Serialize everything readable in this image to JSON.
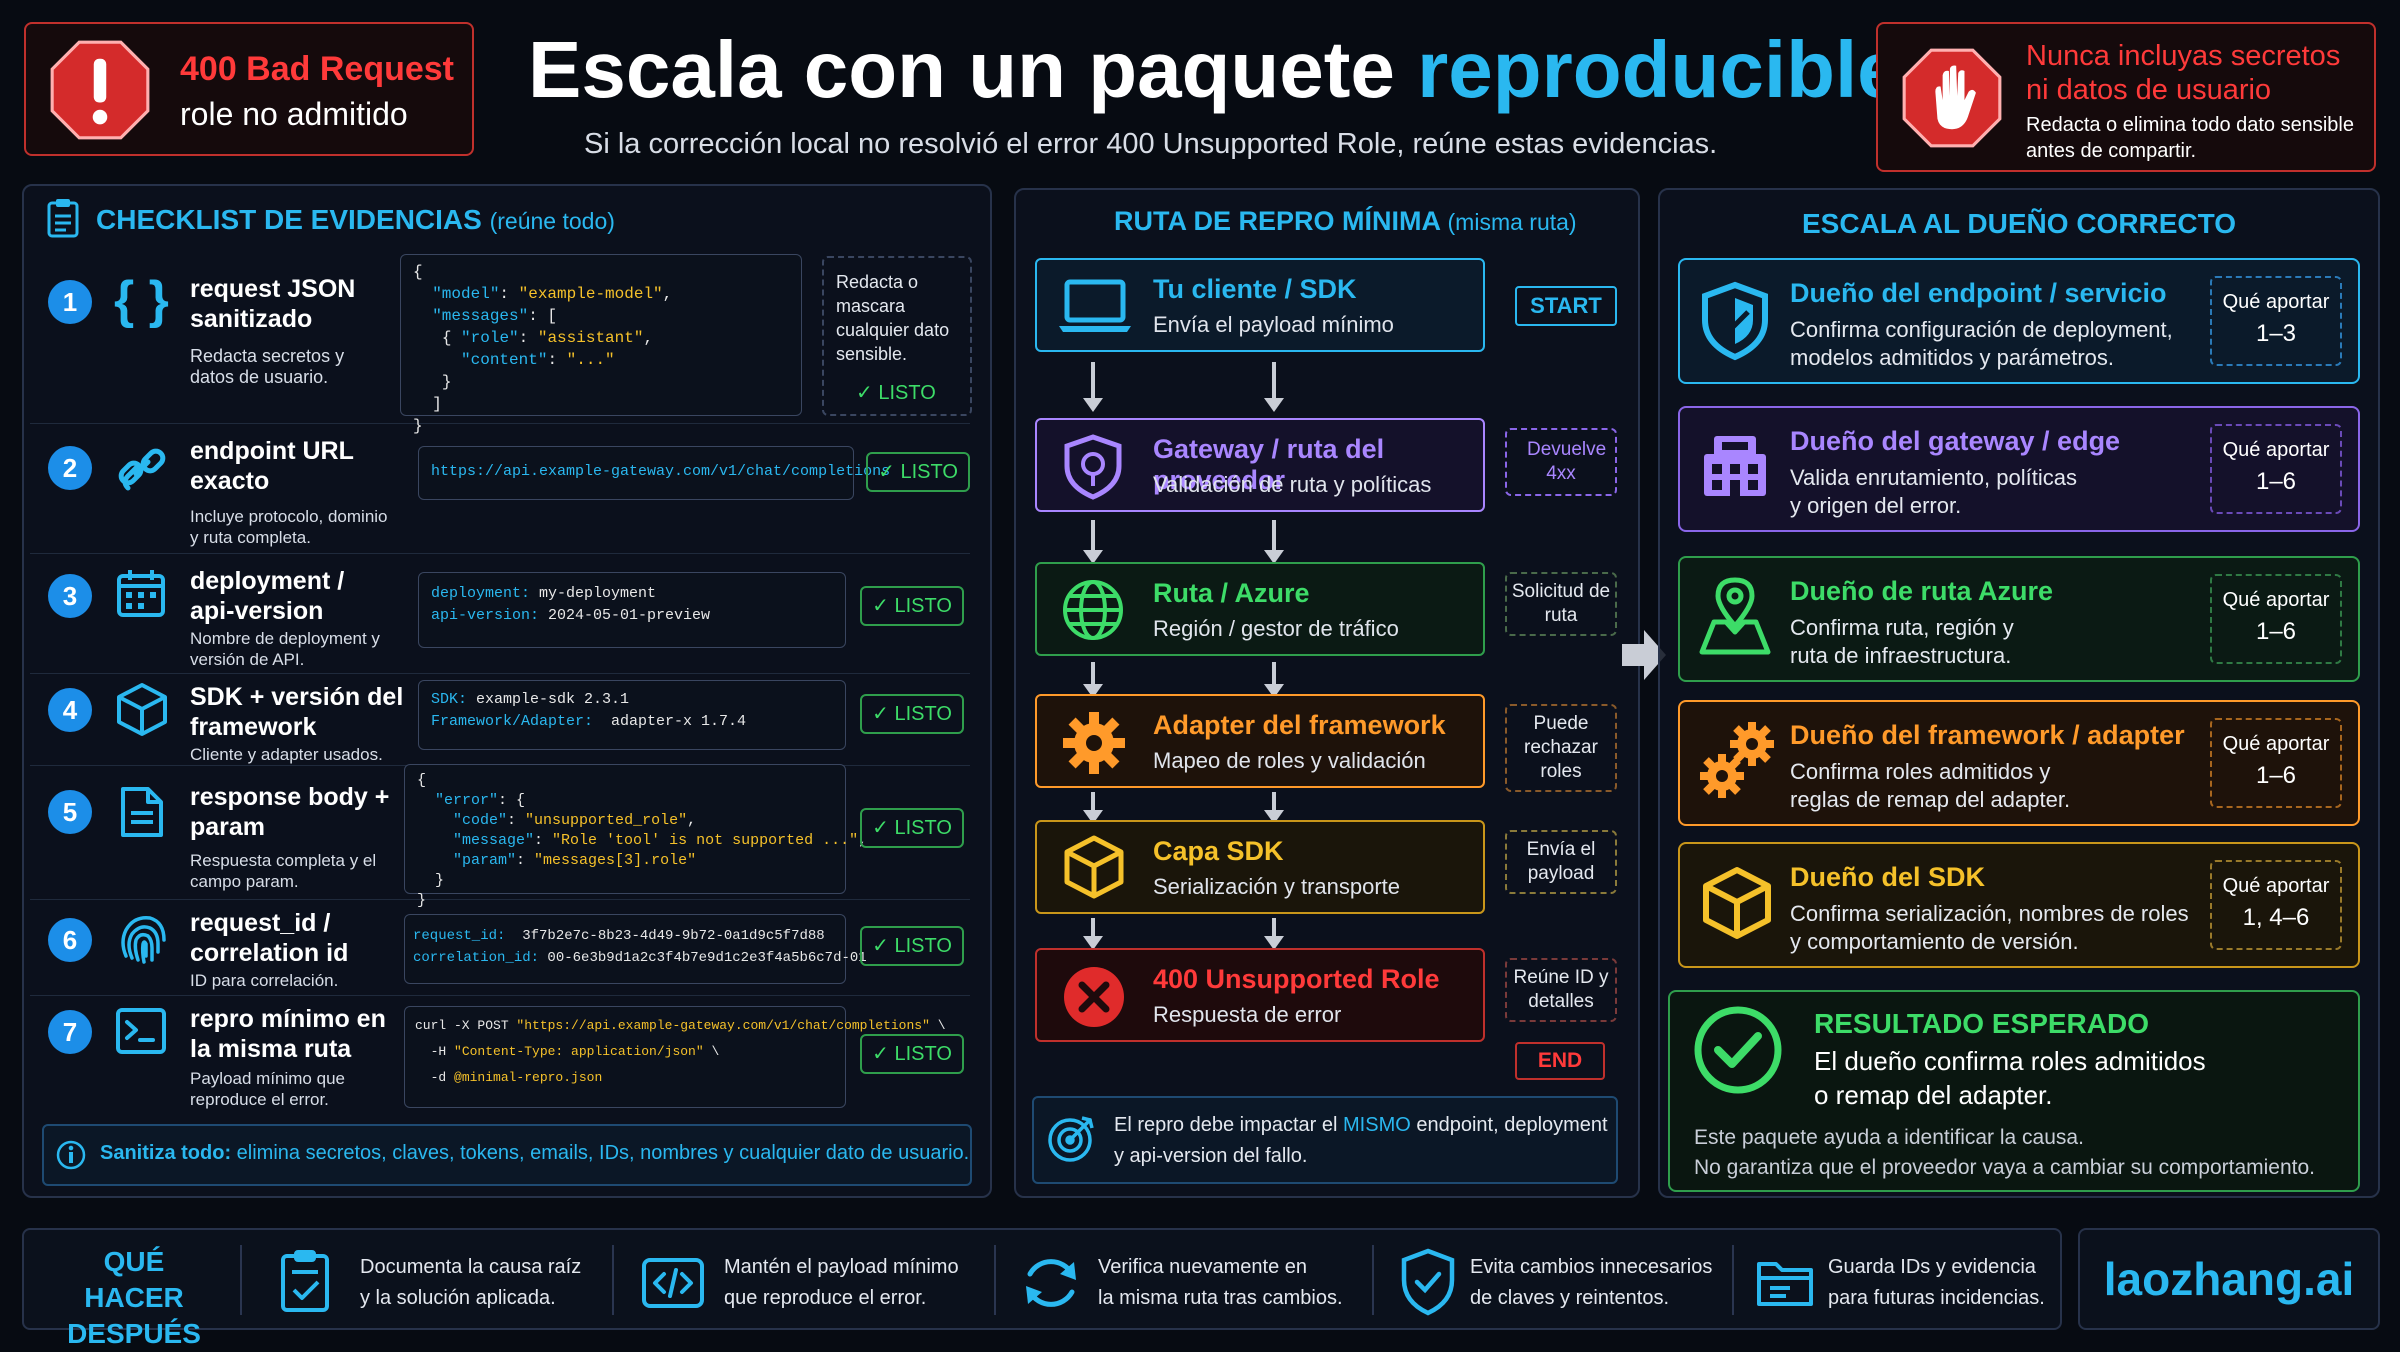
{
  "title_main": "Escala con un paquete ",
  "title_accent": "reproducible",
  "subtitle": "Si la corrección local no resolvió el error 400 Unsupported Role, reúne estas evidencias.",
  "alert_left": {
    "title": "400 Bad Request",
    "text": "role no admitido",
    "icon": "error-shield-icon"
  },
  "alert_right": {
    "title_line1": "Nunca incluyas secretos",
    "title_line2": "ni datos de usuario",
    "text_line1": "Redacta o elimina todo dato sensible",
    "text_line2": "antes de compartir.",
    "icon": "stop-hand-icon"
  },
  "checklist": {
    "title": "CHECKLIST DE EVIDENCIAS",
    "hint": "(reúne todo)",
    "redact_note": "Redacta o mascara cualquier dato sensible.",
    "listo": "✓ LISTO",
    "items": [
      {
        "n": "1",
        "title": "request JSON sanitizado",
        "desc": "Redacta secretos y datos de usuario.",
        "icon": "braces-icon"
      },
      {
        "n": "2",
        "title": "endpoint URL exacto",
        "desc": "Incluye protocolo, dominio y ruta completa.",
        "icon": "link-icon",
        "code": "https://api.example-gateway.com/v1/chat/completions"
      },
      {
        "n": "3",
        "title": "deployment / api-version",
        "desc": "Nombre de deployment y versión de API.",
        "icon": "calendar-icon",
        "k1": "deployment:",
        "v1": " my-deployment",
        "k2": "api-version:",
        "v2": " 2024-05-01-preview"
      },
      {
        "n": "4",
        "title": "SDK + versión del framework",
        "desc": "Cliente y adapter usados.",
        "icon": "cube-icon",
        "k1": "SDK:",
        "v1": " example-sdk 2.3.1",
        "k2": "Framework/Adapter:",
        "v2": "  adapter-x 1.7.4"
      },
      {
        "n": "5",
        "title": "response body + param",
        "desc": "Respuesta completa y el campo param.",
        "icon": "document-icon"
      },
      {
        "n": "6",
        "title": "request_id / correlation id",
        "desc": "ID para correlación.",
        "icon": "fingerprint-icon",
        "k1": "request_id:",
        "v1": "  3f7b2e7c-8b23-4d49-9b72-0a1d9c5f7d88",
        "k2": "correlation_id:",
        "v2": " 00-6e3b9d1a2c3f4b7e9d1c2e3f4a5b6c7d-01"
      },
      {
        "n": "7",
        "title": "repro mínimo en la misma ruta",
        "desc": "Payload mínimo que reproduce el error.",
        "icon": "terminal-icon"
      }
    ],
    "req_json": {
      "l1": "{",
      "k_model": "\"model\"",
      "v_model": "\"example-model\"",
      "k_messages": "\"messages\"",
      "l_open": "{",
      "k_role": "\"role\"",
      "v_role": "\"assistant\"",
      "k_content": "\"content\"",
      "v_content": "\"...\"",
      "l_close1": "}",
      "l_close2": "]",
      "l_end": "}"
    },
    "resp_json": {
      "l1": "{",
      "k_error": "\"error\"",
      "k_code": "\"code\"",
      "v_code": "\"unsupported_role\"",
      "k_message": "\"message\"",
      "v_message": "\"Role 'tool' is not supported ...\"",
      "k_param": "\"param\"",
      "v_param": "\"messages[3].role\"",
      "l_close1": "}",
      "l_end": "}"
    },
    "curl": {
      "l1a": "curl -X POST ",
      "l1b": "\"https://api.example-gateway.com/v1/chat/completions\"",
      "l1c": " \\",
      "l2a": "  -H ",
      "l2b": "\"Content-Type: application/json\"",
      "l2c": " \\",
      "l3a": "  -d ",
      "l3b": "@minimal-repro.json"
    },
    "sanitize_bold": "Sanitiza todo:",
    "sanitize_text": " elimina secretos, claves, tokens, emails, IDs, nombres y cualquier dato de usuario."
  },
  "route": {
    "title": "RUTA DE REPRO MÍNIMA",
    "hint": "(misma ruta)",
    "steps": [
      {
        "t": "Tu cliente / SDK",
        "d": "Envía el payload mínimo",
        "tag": "START",
        "icon": "laptop-icon"
      },
      {
        "t": "Gateway / ruta del proveedor",
        "d": "Validación de ruta y políticas",
        "tag": "Devuelve 4xx",
        "icon": "shield-icon"
      },
      {
        "t": "Ruta / Azure",
        "d": "Región / gestor de tráfico",
        "tag": "Solicitud de ruta",
        "icon": "globe-icon"
      },
      {
        "t": "Adapter del framework",
        "d": "Mapeo de roles y validación",
        "tag": "Puede rechazar roles",
        "icon": "gear-icon"
      },
      {
        "t": "Capa SDK",
        "d": "Serialización y transporte",
        "tag": "Envía el payload",
        "icon": "cube-icon"
      },
      {
        "t": "400 Unsupported Role",
        "d": "Respuesta de error",
        "tag": "Reúne ID y detalles",
        "icon": "error-x-icon"
      }
    ],
    "end": "END",
    "note_a": "El repro debe impactar el ",
    "note_b": "MISMO",
    "note_c": " endpoint, deployment y api-version del fallo."
  },
  "owners": {
    "title": "ESCALA AL DUEÑO CORRECTO",
    "qa": "Qué aportar",
    "items": [
      {
        "t": "Dueño del endpoint / servicio",
        "d1": "Confirma configuración de deployment,",
        "d2": "modelos admitidos y parámetros.",
        "v": "1–3",
        "icon": "shield-icon"
      },
      {
        "t": "Dueño del gateway / edge",
        "d1": "Valida enrutamiento, políticas",
        "d2": "y origen del error.",
        "v": "1–6",
        "icon": "gateway-icon"
      },
      {
        "t": "Dueño de ruta Azure",
        "d1": "Confirma ruta, región y",
        "d2": "ruta de infraestructura.",
        "v": "1–6",
        "icon": "map-pin-icon"
      },
      {
        "t": "Dueño del framework / adapter",
        "d1": "Confirma roles admitidos y",
        "d2": "reglas de remap del adapter.",
        "v": "1–6",
        "icon": "gears-icon"
      },
      {
        "t": "Dueño del SDK",
        "d1": "Confirma serialización, nombres de roles",
        "d2": "y comportamiento de versión.",
        "v": "1, 4–6",
        "icon": "cube-icon"
      }
    ],
    "result_title": "RESULTADO ESPERADO",
    "result_l1": "El dueño confirma roles admitidos",
    "result_l2": "o remap del adapter.",
    "result_n1": "Este paquete ayuda a identificar la causa.",
    "result_n2": "No garantiza que el proveedor vaya a cambiar su comportamiento."
  },
  "next": {
    "title_l1": "QUÉ HACER",
    "title_l2": "DESPUÉS",
    "items": [
      {
        "l1": "Documenta la causa raíz",
        "l2": "y la solución aplicada.",
        "icon": "doc-check-icon"
      },
      {
        "l1": "Mantén el payload mínimo",
        "l2": "que reproduce el error.",
        "icon": "code-icon"
      },
      {
        "l1": "Verifica nuevamente en",
        "l2": "la misma ruta tras cambios.",
        "icon": "refresh-icon"
      },
      {
        "l1": "Evita cambios innecesarios",
        "l2": "de claves y reintentos.",
        "icon": "shield-check-icon"
      },
      {
        "l1": "Guarda IDs y evidencia",
        "l2": "para futuras incidencias.",
        "icon": "folder-icon"
      }
    ],
    "brand": "laozhang.ai"
  },
  "colors": {
    "green": "#3ddc68",
    "cyan": "#2ab8f0",
    "red": "#ff3a3a",
    "purple": "#a986ff",
    "orange": "#ff9a2a",
    "yellow": "#f5c12a"
  }
}
